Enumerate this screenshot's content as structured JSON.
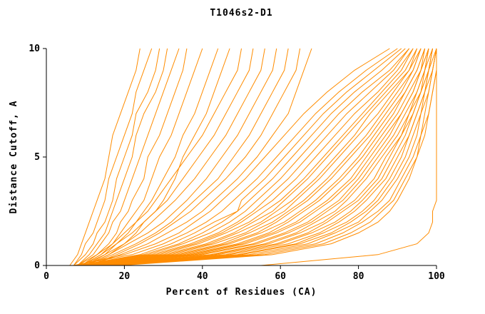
{
  "chart_data": {
    "type": "line",
    "title": "T1046s2-D1",
    "xlabel": "Percent of Residues (CA)",
    "ylabel": "Distance Cutoff, A",
    "xlim": [
      0,
      100
    ],
    "ylim": [
      0,
      10
    ],
    "x_ticks": [
      0,
      20,
      40,
      60,
      80,
      100
    ],
    "y_ticks": [
      0,
      5,
      10
    ],
    "grid": false,
    "legend": "none",
    "line_color": "#ff8c00",
    "axis_color": "#000000",
    "background_color": "#ffffff",
    "y_levels": [
      0,
      0.5,
      1,
      1.5,
      2,
      2.5,
      3,
      4,
      5,
      6,
      7,
      8,
      9,
      10
    ],
    "curves": [
      [
        6,
        8,
        9,
        10,
        11,
        12,
        13,
        15,
        16,
        17,
        19,
        21,
        23,
        24
      ],
      [
        7,
        9,
        10,
        12,
        13,
        14,
        15,
        16,
        18,
        20,
        22,
        23,
        25,
        27
      ],
      [
        7,
        10,
        12,
        13,
        15,
        16,
        17,
        18,
        20,
        22,
        23,
        26,
        28,
        29
      ],
      [
        8,
        11,
        13,
        15,
        16,
        17,
        18,
        20,
        22,
        23,
        25,
        28,
        30,
        31
      ],
      [
        8,
        12,
        14,
        16,
        17,
        19,
        20,
        22,
        24,
        26,
        28,
        30,
        32,
        34
      ],
      [
        9,
        13,
        16,
        18,
        19,
        21,
        22,
        25,
        26,
        29,
        31,
        33,
        35,
        36
      ],
      [
        9,
        14,
        17,
        19,
        21,
        23,
        25,
        27,
        29,
        32,
        34,
        36,
        38,
        40
      ],
      [
        10,
        15,
        18,
        21,
        23,
        25,
        27,
        30,
        33,
        35,
        38,
        40,
        42,
        44
      ],
      [
        10,
        16,
        20,
        23,
        25,
        28,
        30,
        33,
        35,
        38,
        41,
        43,
        45,
        47
      ],
      [
        8,
        13,
        17,
        20,
        23,
        26,
        28,
        32,
        36,
        40,
        43,
        46,
        49,
        50
      ],
      [
        9,
        14,
        18,
        22,
        25,
        28,
        31,
        35,
        39,
        43,
        46,
        49,
        52,
        53
      ],
      [
        9,
        15,
        20,
        24,
        27,
        30,
        33,
        38,
        42,
        46,
        49,
        52,
        55,
        56
      ],
      [
        10,
        16,
        21,
        26,
        30,
        33,
        36,
        41,
        45,
        49,
        52,
        55,
        58,
        59
      ],
      [
        10,
        17,
        23,
        28,
        32,
        35,
        38,
        44,
        48,
        52,
        55,
        58,
        61,
        62
      ],
      [
        11,
        18,
        24,
        29,
        33,
        37,
        40,
        46,
        51,
        55,
        58,
        61,
        64,
        65
      ],
      [
        11,
        19,
        26,
        31,
        36,
        40,
        43,
        49,
        54,
        58,
        62,
        64,
        66,
        68
      ],
      [
        7,
        20,
        28,
        34,
        38,
        42,
        45,
        51,
        56,
        61,
        66,
        72,
        79,
        88
      ],
      [
        7,
        22,
        30,
        36,
        41,
        45,
        48,
        54,
        59,
        64,
        69,
        75,
        82,
        90
      ],
      [
        8,
        24,
        32,
        38,
        43,
        49,
        50,
        56,
        61,
        66,
        71,
        77,
        84,
        91
      ],
      [
        8,
        25,
        34,
        40,
        45,
        49,
        52,
        58,
        63,
        68,
        73,
        79,
        86,
        92
      ],
      [
        8,
        26,
        35,
        42,
        47,
        51,
        54,
        60,
        65,
        70,
        75,
        81,
        88,
        93
      ],
      [
        9,
        27,
        37,
        44,
        49,
        53,
        56,
        62,
        67,
        72,
        77,
        83,
        89,
        93
      ],
      [
        9,
        28,
        38,
        45,
        50,
        54,
        58,
        64,
        69,
        74,
        79,
        85,
        90,
        94
      ],
      [
        9,
        29,
        39,
        46,
        52,
        56,
        60,
        66,
        71,
        76,
        81,
        86,
        91,
        94
      ],
      [
        10,
        30,
        41,
        48,
        53,
        58,
        61,
        67,
        72,
        77,
        82,
        87,
        92,
        95
      ],
      [
        10,
        31,
        42,
        49,
        55,
        59,
        63,
        69,
        74,
        79,
        83,
        88,
        93,
        95
      ],
      [
        10,
        32,
        43,
        51,
        56,
        61,
        64,
        70,
        75,
        80,
        85,
        89,
        93,
        96
      ],
      [
        11,
        33,
        45,
        52,
        58,
        62,
        66,
        72,
        77,
        82,
        86,
        90,
        94,
        96
      ],
      [
        11,
        34,
        46,
        54,
        59,
        63,
        67,
        73,
        78,
        83,
        87,
        91,
        94,
        96
      ],
      [
        11,
        35,
        47,
        55,
        61,
        65,
        69,
        75,
        80,
        84,
        88,
        92,
        95,
        97
      ],
      [
        12,
        36,
        49,
        57,
        62,
        66,
        70,
        76,
        81,
        85,
        89,
        92,
        95,
        97
      ],
      [
        12,
        37,
        50,
        58,
        64,
        68,
        72,
        78,
        82,
        86,
        90,
        93,
        96,
        97
      ],
      [
        12,
        38,
        51,
        59,
        65,
        69,
        73,
        79,
        83,
        87,
        91,
        94,
        96,
        98
      ],
      [
        13,
        39,
        53,
        61,
        67,
        71,
        75,
        80,
        84,
        88,
        91,
        94,
        96,
        98
      ],
      [
        13,
        40,
        54,
        62,
        68,
        72,
        76,
        81,
        85,
        89,
        92,
        95,
        97,
        98
      ],
      [
        13,
        42,
        56,
        64,
        69,
        74,
        77,
        82,
        86,
        90,
        93,
        95,
        97,
        98
      ],
      [
        14,
        43,
        57,
        65,
        71,
        75,
        79,
        84,
        87,
        91,
        93,
        96,
        97,
        99
      ],
      [
        14,
        44,
        59,
        67,
        72,
        76,
        80,
        85,
        88,
        91,
        94,
        96,
        98,
        99
      ],
      [
        14,
        46,
        60,
        68,
        74,
        78,
        81,
        86,
        89,
        92,
        94,
        96,
        98,
        99
      ],
      [
        15,
        47,
        62,
        70,
        75,
        79,
        82,
        87,
        90,
        93,
        95,
        97,
        98,
        99
      ],
      [
        15,
        49,
        64,
        71,
        77,
        81,
        84,
        88,
        91,
        93,
        95,
        97,
        98,
        100
      ],
      [
        16,
        50,
        65,
        73,
        78,
        82,
        85,
        89,
        92,
        94,
        96,
        97,
        99,
        100
      ],
      [
        16,
        52,
        67,
        74,
        80,
        83,
        86,
        90,
        93,
        95,
        96,
        98,
        99,
        100
      ],
      [
        17,
        54,
        69,
        76,
        81,
        85,
        88,
        91,
        94,
        96,
        97,
        98,
        99,
        100
      ],
      [
        18,
        56,
        71,
        78,
        83,
        86,
        89,
        92,
        95,
        96,
        98,
        99,
        100,
        100
      ],
      [
        19,
        58,
        73,
        80,
        85,
        88,
        90,
        93,
        95,
        97,
        98,
        99,
        100,
        100
      ],
      [
        55,
        85,
        95,
        98,
        99,
        99,
        100,
        100,
        100,
        100,
        100,
        100,
        100,
        100
      ]
    ]
  }
}
